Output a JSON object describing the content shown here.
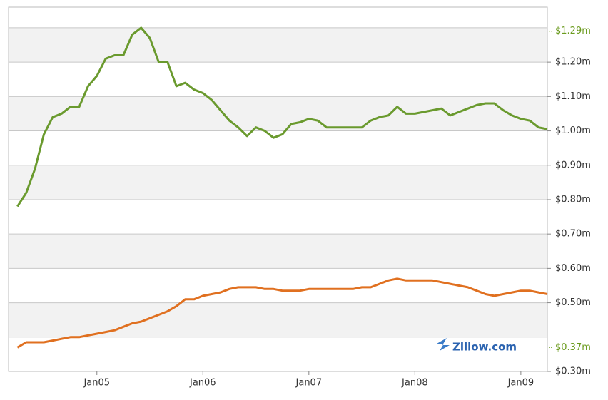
{
  "chart_data": {
    "type": "line",
    "x": [
      "2004-04",
      "2004-05",
      "2004-06",
      "2004-07",
      "2004-08",
      "2004-09",
      "2004-10",
      "2004-11",
      "2004-12",
      "2005-01",
      "2005-02",
      "2005-03",
      "2005-04",
      "2005-05",
      "2005-06",
      "2005-07",
      "2005-08",
      "2005-09",
      "2005-10",
      "2005-11",
      "2005-12",
      "2006-01",
      "2006-02",
      "2006-03",
      "2006-04",
      "2006-05",
      "2006-06",
      "2006-07",
      "2006-08",
      "2006-09",
      "2006-10",
      "2006-11",
      "2006-12",
      "2007-01",
      "2007-02",
      "2007-03",
      "2007-04",
      "2007-05",
      "2007-06",
      "2007-07",
      "2007-08",
      "2007-09",
      "2007-10",
      "2007-11",
      "2007-12",
      "2008-01",
      "2008-02",
      "2008-03",
      "2008-04",
      "2008-05",
      "2008-06",
      "2008-07",
      "2008-08",
      "2008-09",
      "2008-10",
      "2008-11",
      "2008-12",
      "2009-01",
      "2009-02",
      "2009-03",
      "2009-04"
    ],
    "series": [
      {
        "color": "#6a9a2e",
        "values": [
          0.78,
          0.82,
          0.89,
          0.99,
          1.04,
          1.05,
          1.07,
          1.07,
          1.13,
          1.16,
          1.21,
          1.22,
          1.22,
          1.28,
          1.3,
          1.27,
          1.2,
          1.2,
          1.13,
          1.14,
          1.12,
          1.11,
          1.09,
          1.06,
          1.03,
          1.01,
          0.985,
          1.01,
          1.0,
          0.98,
          0.99,
          1.02,
          1.025,
          1.035,
          1.03,
          1.01,
          1.01,
          1.01,
          1.01,
          1.01,
          1.03,
          1.04,
          1.045,
          1.07,
          1.05,
          1.05,
          1.055,
          1.06,
          1.065,
          1.045,
          1.055,
          1.065,
          1.075,
          1.08,
          1.08,
          1.06,
          1.045,
          1.035,
          1.03,
          1.01,
          1.005
        ]
      },
      {
        "color": "#e07020",
        "values": [
          0.37,
          0.385,
          0.385,
          0.385,
          0.39,
          0.395,
          0.4,
          0.4,
          0.405,
          0.41,
          0.415,
          0.42,
          0.43,
          0.44,
          0.445,
          0.455,
          0.465,
          0.475,
          0.49,
          0.51,
          0.51,
          0.52,
          0.525,
          0.53,
          0.54,
          0.545,
          0.545,
          0.545,
          0.54,
          0.54,
          0.535,
          0.535,
          0.535,
          0.54,
          0.54,
          0.54,
          0.54,
          0.54,
          0.54,
          0.545,
          0.545,
          0.555,
          0.565,
          0.57,
          0.565,
          0.565,
          0.565,
          0.565,
          0.56,
          0.555,
          0.55,
          0.545,
          0.535,
          0.525,
          0.52,
          0.525,
          0.53,
          0.535,
          0.535,
          0.53,
          0.525
        ]
      }
    ],
    "xlim": [
      "2004-03",
      "2009-04"
    ],
    "xticks": [
      {
        "value": "2005-01",
        "label": "Jan05"
      },
      {
        "value": "2006-01",
        "label": "Jan06"
      },
      {
        "value": "2007-01",
        "label": "Jan07"
      },
      {
        "value": "2008-01",
        "label": "Jan08"
      },
      {
        "value": "2009-01",
        "label": "Jan09"
      }
    ],
    "ylim": [
      0.3,
      1.36
    ],
    "yticks": [
      {
        "value": 0.3,
        "label": "$0.30m"
      },
      {
        "value": 0.5,
        "label": "$0.50m"
      },
      {
        "value": 0.6,
        "label": "$0.60m"
      },
      {
        "value": 0.7,
        "label": "$0.70m"
      },
      {
        "value": 0.8,
        "label": "$0.80m"
      },
      {
        "value": 0.9,
        "label": "$0.90m"
      },
      {
        "value": 1.0,
        "label": "$1.00m"
      },
      {
        "value": 1.1,
        "label": "$1.10m"
      },
      {
        "value": 1.2,
        "label": "$1.20m"
      }
    ],
    "gridlines": [
      0.4,
      0.5,
      0.6,
      0.7,
      0.8,
      0.9,
      1.0,
      1.1,
      1.2,
      1.3
    ],
    "highlight_ticks": [
      {
        "value": 1.29,
        "label": "$1.29m"
      },
      {
        "value": 0.37,
        "label": "$0.37m"
      }
    ],
    "highlight_color": "#6b9b1e",
    "watermark": "Zillow.com"
  }
}
